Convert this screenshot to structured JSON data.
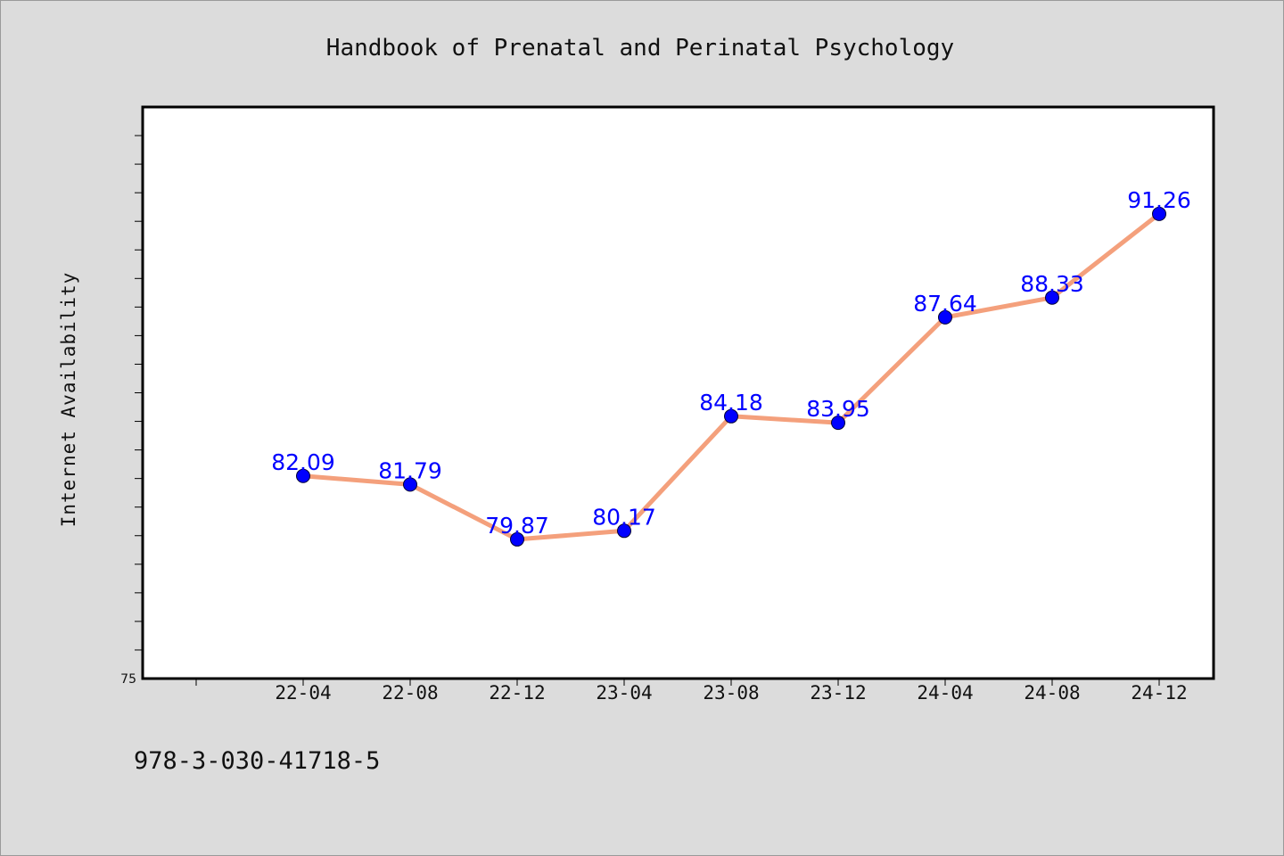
{
  "footer": {
    "isbn": "978-3-030-41718-5"
  },
  "chart_data": {
    "type": "line",
    "title": "Handbook of Prenatal and Perinatal Psychology",
    "xlabel": "",
    "ylabel": "Internet Availability",
    "categories": [
      "22-04",
      "22-08",
      "22-12",
      "23-04",
      "23-08",
      "23-12",
      "24-04",
      "24-08",
      "24-12"
    ],
    "series": [
      {
        "values": [
          82.09,
          81.79,
          79.87,
          80.17,
          84.18,
          83.95,
          87.64,
          88.33,
          91.26
        ]
      }
    ],
    "ylim": [
      75,
      95
    ],
    "y_tick_labels": [
      "75"
    ],
    "grid": false,
    "legend": "none",
    "colors": {
      "line": "#f4a07c",
      "marker": "#0000ff",
      "label": "#0000ff"
    }
  }
}
